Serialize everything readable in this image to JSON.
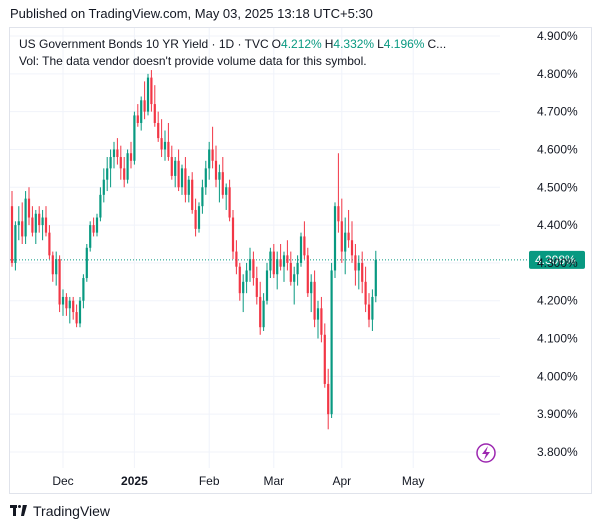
{
  "header": {
    "published": "Published on TradingView.com, May 03, 2025 13:18 UTC+5:30"
  },
  "legend": {
    "symbol": "US Government Bonds 10 YR Yield · 1D · TVC",
    "o_label": "O",
    "o_value": "4.212%",
    "h_label": "H",
    "h_value": "4.332%",
    "l_label": "L",
    "l_value": "4.196%",
    "c_label": "C...",
    "vol_text": "Vol: The data vendor doesn't provide volume data for this symbol."
  },
  "footer": {
    "brand": "TradingView"
  },
  "colors": {
    "up": "#089981",
    "down": "#f23645",
    "grid": "#f0f3fa",
    "last_price_bg": "#089981"
  },
  "chart_data": {
    "type": "candlestick",
    "y_ticks": [
      "4.900%",
      "4.800%",
      "4.700%",
      "4.600%",
      "4.500%",
      "4.400%",
      "4.300%",
      "4.200%",
      "4.100%",
      "4.000%",
      "3.900%",
      "3.800%"
    ],
    "y_tick_values": [
      4.9,
      4.8,
      4.7,
      4.6,
      4.5,
      4.4,
      4.3,
      4.2,
      4.1,
      4.0,
      3.9,
      3.8
    ],
    "ylim": [
      3.76,
      4.94
    ],
    "x_ticks": [
      {
        "label": "Dec",
        "index": 15,
        "bold": false
      },
      {
        "label": "2025",
        "index": 36,
        "bold": true
      },
      {
        "label": "Feb",
        "index": 58,
        "bold": false
      },
      {
        "label": "Mar",
        "index": 77,
        "bold": false
      },
      {
        "label": "Apr",
        "index": 97,
        "bold": false
      },
      {
        "label": "May",
        "index": 118,
        "bold": false
      }
    ],
    "last_price": 4.308,
    "last_price_label": "4.308%",
    "candles": [
      [
        4.45,
        4.49,
        4.29,
        4.3
      ],
      [
        4.3,
        4.41,
        4.28,
        4.4
      ],
      [
        4.4,
        4.45,
        4.36,
        4.41
      ],
      [
        4.41,
        4.46,
        4.35,
        4.37
      ],
      [
        4.37,
        4.49,
        4.35,
        4.47
      ],
      [
        4.47,
        4.5,
        4.4,
        4.42
      ],
      [
        4.42,
        4.45,
        4.37,
        4.38
      ],
      [
        4.38,
        4.44,
        4.35,
        4.43
      ],
      [
        4.43,
        4.45,
        4.38,
        4.4
      ],
      [
        4.4,
        4.44,
        4.36,
        4.42
      ],
      [
        4.42,
        4.45,
        4.37,
        4.38
      ],
      [
        4.38,
        4.4,
        4.31,
        4.32
      ],
      [
        4.32,
        4.33,
        4.25,
        4.27
      ],
      [
        4.27,
        4.33,
        4.24,
        4.31
      ],
      [
        4.31,
        4.32,
        4.17,
        4.19
      ],
      [
        4.19,
        4.23,
        4.16,
        4.21
      ],
      [
        4.21,
        4.22,
        4.16,
        4.18
      ],
      [
        4.18,
        4.21,
        4.14,
        4.2
      ],
      [
        4.2,
        4.21,
        4.15,
        4.17
      ],
      [
        4.17,
        4.19,
        4.13,
        4.14
      ],
      [
        4.14,
        4.21,
        4.13,
        4.2
      ],
      [
        4.2,
        4.27,
        4.18,
        4.26
      ],
      [
        4.26,
        4.35,
        4.25,
        4.34
      ],
      [
        4.34,
        4.41,
        4.33,
        4.4
      ],
      [
        4.4,
        4.42,
        4.37,
        4.38
      ],
      [
        4.38,
        4.43,
        4.37,
        4.42
      ],
      [
        4.42,
        4.5,
        4.41,
        4.48
      ],
      [
        4.48,
        4.55,
        4.46,
        4.52
      ],
      [
        4.52,
        4.58,
        4.49,
        4.55
      ],
      [
        4.55,
        4.6,
        4.5,
        4.58
      ],
      [
        4.58,
        4.62,
        4.55,
        4.6
      ],
      [
        4.6,
        4.63,
        4.56,
        4.58
      ],
      [
        4.58,
        4.61,
        4.52,
        4.55
      ],
      [
        4.55,
        4.58,
        4.5,
        4.52
      ],
      [
        4.52,
        4.6,
        4.51,
        4.59
      ],
      [
        4.59,
        4.62,
        4.55,
        4.57
      ],
      [
        4.57,
        4.7,
        4.56,
        4.69
      ],
      [
        4.69,
        4.72,
        4.66,
        4.67
      ],
      [
        4.67,
        4.74,
        4.65,
        4.73
      ],
      [
        4.73,
        4.78,
        4.68,
        4.7
      ],
      [
        4.7,
        4.8,
        4.69,
        4.79
      ],
      [
        4.79,
        4.81,
        4.7,
        4.72
      ],
      [
        4.72,
        4.77,
        4.66,
        4.67
      ],
      [
        4.67,
        4.7,
        4.62,
        4.63
      ],
      [
        4.63,
        4.68,
        4.58,
        4.6
      ],
      [
        4.6,
        4.65,
        4.57,
        4.62
      ],
      [
        4.62,
        4.67,
        4.57,
        4.58
      ],
      [
        4.58,
        4.61,
        4.52,
        4.53
      ],
      [
        4.53,
        4.58,
        4.5,
        4.57
      ],
      [
        4.57,
        4.6,
        4.49,
        4.5
      ],
      [
        4.5,
        4.56,
        4.48,
        4.55
      ],
      [
        4.55,
        4.58,
        4.46,
        4.48
      ],
      [
        4.48,
        4.53,
        4.46,
        4.52
      ],
      [
        4.52,
        4.54,
        4.43,
        4.44
      ],
      [
        4.44,
        4.47,
        4.37,
        4.39
      ],
      [
        4.39,
        4.46,
        4.38,
        4.45
      ],
      [
        4.45,
        4.52,
        4.43,
        4.5
      ],
      [
        4.5,
        4.57,
        4.48,
        4.55
      ],
      [
        4.55,
        4.62,
        4.52,
        4.6
      ],
      [
        4.6,
        4.66,
        4.55,
        4.57
      ],
      [
        4.57,
        4.61,
        4.5,
        4.52
      ],
      [
        4.52,
        4.56,
        4.46,
        4.54
      ],
      [
        4.54,
        4.58,
        4.47,
        4.48
      ],
      [
        4.48,
        4.51,
        4.44,
        4.5
      ],
      [
        4.5,
        4.52,
        4.41,
        4.42
      ],
      [
        4.42,
        4.44,
        4.31,
        4.33
      ],
      [
        4.33,
        4.36,
        4.27,
        4.29
      ],
      [
        4.29,
        4.3,
        4.2,
        4.22
      ],
      [
        4.22,
        4.27,
        4.17,
        4.25
      ],
      [
        4.25,
        4.3,
        4.22,
        4.28
      ],
      [
        4.28,
        4.34,
        4.25,
        4.31
      ],
      [
        4.31,
        4.33,
        4.24,
        4.26
      ],
      [
        4.26,
        4.29,
        4.19,
        4.21
      ],
      [
        4.21,
        4.25,
        4.11,
        4.13
      ],
      [
        4.13,
        4.22,
        4.12,
        4.2
      ],
      [
        4.2,
        4.3,
        4.19,
        4.28
      ],
      [
        4.28,
        4.34,
        4.26,
        4.33
      ],
      [
        4.33,
        4.35,
        4.26,
        4.27
      ],
      [
        4.27,
        4.33,
        4.23,
        4.31
      ],
      [
        4.31,
        4.35,
        4.28,
        4.29
      ],
      [
        4.29,
        4.33,
        4.25,
        4.32
      ],
      [
        4.32,
        4.36,
        4.28,
        4.3
      ],
      [
        4.3,
        4.33,
        4.24,
        4.25
      ],
      [
        4.25,
        4.29,
        4.19,
        4.27
      ],
      [
        4.27,
        4.32,
        4.24,
        4.3
      ],
      [
        4.3,
        4.38,
        4.29,
        4.37
      ],
      [
        4.37,
        4.41,
        4.31,
        4.32
      ],
      [
        4.32,
        4.34,
        4.21,
        4.22
      ],
      [
        4.22,
        4.27,
        4.17,
        4.25
      ],
      [
        4.25,
        4.28,
        4.13,
        4.15
      ],
      [
        4.15,
        4.2,
        4.1,
        4.18
      ],
      [
        4.18,
        4.21,
        4.09,
        4.11
      ],
      [
        4.11,
        4.14,
        3.97,
        3.98
      ],
      [
        3.98,
        4.02,
        3.86,
        3.9
      ],
      [
        3.9,
        4.3,
        3.89,
        4.28
      ],
      [
        4.28,
        4.46,
        4.26,
        4.45
      ],
      [
        4.45,
        4.59,
        4.38,
        4.41
      ],
      [
        4.41,
        4.47,
        4.3,
        4.33
      ],
      [
        4.33,
        4.42,
        4.27,
        4.38
      ],
      [
        4.38,
        4.44,
        4.34,
        4.36
      ],
      [
        4.36,
        4.41,
        4.3,
        4.32
      ],
      [
        4.32,
        4.35,
        4.24,
        4.28
      ],
      [
        4.28,
        4.32,
        4.23,
        4.3
      ],
      [
        4.3,
        4.33,
        4.22,
        4.25
      ],
      [
        4.25,
        4.29,
        4.17,
        4.19
      ],
      [
        4.19,
        4.22,
        4.13,
        4.15
      ],
      [
        4.15,
        4.23,
        4.12,
        4.21
      ],
      [
        4.212,
        4.332,
        4.196,
        4.308
      ]
    ]
  }
}
